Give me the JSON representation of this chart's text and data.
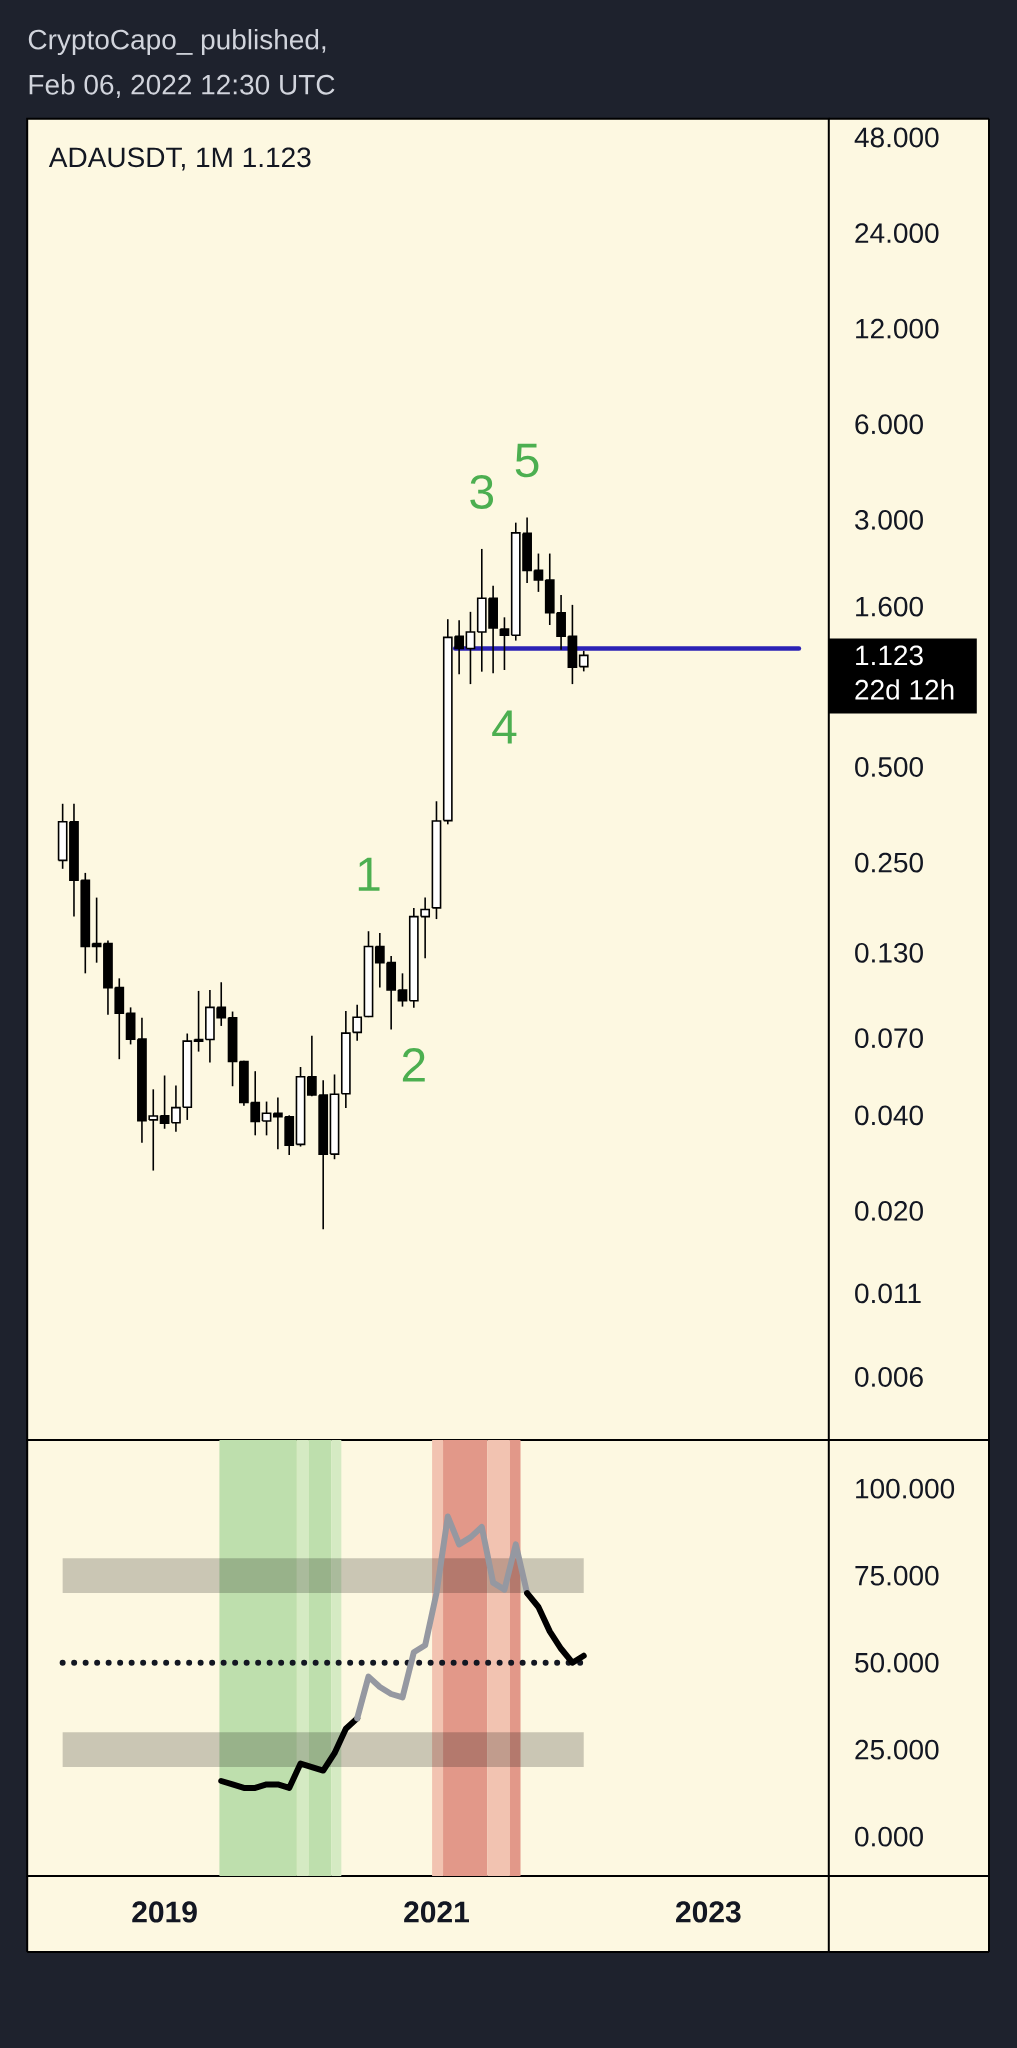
{
  "chart_data": [
    {
      "type": "candlestick",
      "title": "ADAUSDT, 1M 1.123",
      "x": [
        "2018-04",
        "2018-05",
        "2018-06",
        "2018-07",
        "2018-08",
        "2018-09",
        "2018-10",
        "2018-11",
        "2018-12",
        "2019-01",
        "2019-02",
        "2019-03",
        "2019-04",
        "2019-05",
        "2019-06",
        "2019-07",
        "2019-08",
        "2019-09",
        "2019-10",
        "2019-11",
        "2019-12",
        "2020-01",
        "2020-02",
        "2020-03",
        "2020-04",
        "2020-05",
        "2020-06",
        "2020-07",
        "2020-08",
        "2020-09",
        "2020-10",
        "2020-11",
        "2020-12",
        "2021-01",
        "2021-02",
        "2021-03",
        "2021-04",
        "2021-05",
        "2021-06",
        "2021-07",
        "2021-08",
        "2021-09",
        "2021-10",
        "2021-11",
        "2021-12",
        "2022-01",
        "2022-02"
      ],
      "ohlc": [
        [
          0.254,
          0.383,
          0.239,
          0.336
        ],
        [
          0.336,
          0.383,
          0.169,
          0.22
        ],
        [
          0.22,
          0.232,
          0.112,
          0.136
        ],
        [
          0.139,
          0.194,
          0.121,
          0.136
        ],
        [
          0.139,
          0.142,
          0.0829,
          0.101
        ],
        [
          0.101,
          0.108,
          0.0601,
          0.0839
        ],
        [
          0.0839,
          0.0875,
          0.0669,
          0.0695
        ],
        [
          0.0695,
          0.0812,
          0.0328,
          0.0385
        ],
        [
          0.0387,
          0.0483,
          0.0268,
          0.0398
        ],
        [
          0.0399,
          0.0534,
          0.0363,
          0.0378
        ],
        [
          0.0379,
          0.0497,
          0.0355,
          0.0423
        ],
        [
          0.0424,
          0.0724,
          0.0387,
          0.0685
        ],
        [
          0.0693,
          0.0986,
          0.0635,
          0.0685
        ],
        [
          0.0693,
          0.0993,
          0.0587,
          0.0875
        ],
        [
          0.0875,
          0.105,
          0.0765,
          0.0812
        ],
        [
          0.0812,
          0.0849,
          0.0494,
          0.0591
        ],
        [
          0.0591,
          0.0594,
          0.0429,
          0.0439
        ],
        [
          0.0439,
          0.0551,
          0.0346,
          0.0383
        ],
        [
          0.0384,
          0.0442,
          0.0346,
          0.0406
        ],
        [
          0.0406,
          0.0455,
          0.0313,
          0.0396
        ],
        [
          0.0396,
          0.04,
          0.03,
          0.0322
        ],
        [
          0.0324,
          0.0568,
          0.0319,
          0.0529
        ],
        [
          0.0529,
          0.0712,
          0.0459,
          0.0464
        ],
        [
          0.0463,
          0.0516,
          0.0175,
          0.0302
        ],
        [
          0.0302,
          0.0538,
          0.0291,
          0.0466
        ],
        [
          0.0468,
          0.0853,
          0.0422,
          0.0726
        ],
        [
          0.073,
          0.0892,
          0.0687,
          0.0815
        ],
        [
          0.0819,
          0.152,
          0.0815,
          0.136
        ],
        [
          0.136,
          0.15,
          0.101,
          0.121
        ],
        [
          0.121,
          0.127,
          0.0745,
          0.0993
        ],
        [
          0.0993,
          0.112,
          0.088,
          0.0918
        ],
        [
          0.0918,
          0.18,
          0.0872,
          0.169
        ],
        [
          0.169,
          0.194,
          0.125,
          0.178
        ],
        [
          0.18,
          0.39,
          0.166,
          0.338
        ],
        [
          0.339,
          1.46,
          0.33,
          1.28
        ],
        [
          1.29,
          1.45,
          0.98,
          1.18
        ],
        [
          1.18,
          1.54,
          0.912,
          1.33
        ],
        [
          1.33,
          2.43,
          0.998,
          1.7
        ],
        [
          1.7,
          1.86,
          0.987,
          1.37
        ],
        [
          1.36,
          1.48,
          1.01,
          1.3
        ],
        [
          1.3,
          2.94,
          1.25,
          2.73
        ],
        [
          2.72,
          3.05,
          1.9,
          2.08
        ],
        [
          2.08,
          2.35,
          1.78,
          1.94
        ],
        [
          1.94,
          2.35,
          1.4,
          1.53
        ],
        [
          1.53,
          1.74,
          1.17,
          1.29
        ],
        [
          1.29,
          1.62,
          0.912,
          1.03
        ],
        [
          1.035,
          1.16,
          1.0,
          1.123
        ]
      ],
      "colors": [
        "#ffffff",
        "#000000",
        "#000000",
        "#000000",
        "#000000",
        "#000000",
        "#000000",
        "#000000",
        "#ffffff",
        "#000000",
        "#ffffff",
        "#ffffff",
        "#000000",
        "#ffffff",
        "#000000",
        "#000000",
        "#000000",
        "#000000",
        "#ffffff",
        "#000000",
        "#000000",
        "#ffffff",
        "#000000",
        "#000000",
        "#ffffff",
        "#ffffff",
        "#ffffff",
        "#ffffff",
        "#000000",
        "#000000",
        "#000000",
        "#ffffff",
        "#ffffff",
        "#ffffff",
        "#ffffff",
        "#000000",
        "#ffffff",
        "#ffffff",
        "#000000",
        "#000000",
        "#ffffff",
        "#000000",
        "#000000",
        "#000000",
        "#000000",
        "#000000",
        "#ffffff"
      ],
      "series": [
        {
          "type": "line",
          "color": "#2b22b5",
          "x": [
            "2021-02-19",
            "2023-09-01"
          ],
          "values": [
            1.18,
            1.18
          ]
        }
      ],
      "annotations": [
        "CryptoCapo_ published,",
        "Feb 06, 2022 12:30 UTC",
        "1.123",
        "22d 12h",
        {
          "text": "1",
          "x": "2020-07",
          "y": 0.152
        },
        {
          "text": "2",
          "x": "2020-11",
          "y": 0.0872
        },
        {
          "text": "3",
          "x": "2021-05",
          "y": 2.43
        },
        {
          "text": "4",
          "x": "2021-07",
          "y": 1.01
        },
        {
          "text": "5",
          "x": "2021-09",
          "y": 3.05
        }
      ],
      "xlim": [
        "2017-12-28",
        "2023-11-20"
      ],
      "xticks": [
        "2019",
        "2021",
        "2023"
      ],
      "ylim": [
        0.0038,
        55
      ],
      "yticks": [
        {
          "value": 0.006,
          "label": "0.006"
        },
        {
          "value": 0.011,
          "label": "0.011"
        },
        {
          "value": 0.02,
          "label": "0.020"
        },
        {
          "value": 0.04,
          "label": "0.040"
        },
        {
          "value": 0.07,
          "label": "0.070"
        },
        {
          "value": 0.13,
          "label": "0.130"
        },
        {
          "value": 0.25,
          "label": "0.250"
        },
        {
          "value": 0.5,
          "label": "0.500"
        },
        {
          "value": 1.6,
          "label": "1.600"
        },
        {
          "value": 3,
          "label": "3.000"
        },
        {
          "value": 6,
          "label": "6.000"
        },
        {
          "value": 12,
          "label": "12.000"
        },
        {
          "value": 24,
          "label": "24.000"
        },
        {
          "value": 48,
          "label": "48.000"
        }
      ],
      "log": true,
      "tick_labels": "y"
    },
    {
      "type": "line",
      "series": [
        {
          "color": "#000000",
          "x": [
            "2019-06",
            "2019-07",
            "2019-08",
            "2019-09",
            "2019-10",
            "2019-11",
            "2019-12",
            "2020-01",
            "2020-02",
            "2020-03",
            "2020-04",
            "2020-05",
            "2020-06"
          ],
          "values": [
            16,
            15,
            14,
            14,
            15,
            15,
            14,
            21,
            20,
            19,
            24,
            31,
            34
          ]
        },
        {
          "color": "#9598a1",
          "x": [
            "2020-06",
            "2020-07",
            "2020-08",
            "2020-09",
            "2020-10",
            "2020-11",
            "2020-12",
            "2021-01",
            "2021-02",
            "2021-03",
            "2021-04",
            "2021-05",
            "2021-06",
            "2021-07",
            "2021-08",
            "2021-09"
          ],
          "values": [
            34,
            46,
            43,
            41,
            40,
            53,
            55,
            70,
            92,
            84,
            86,
            89,
            73,
            71,
            84,
            70
          ]
        },
        {
          "color": "#000000",
          "x": [
            "2021-09",
            "2021-10",
            "2021-11",
            "2021-12",
            "2022-01",
            "2022-02"
          ],
          "values": [
            70,
            66,
            59,
            54,
            50,
            52
          ]
        }
      ],
      "bands": [
        {
          "axis": "x",
          "from": "2019-05-27",
          "to": "2019-12-22",
          "color": "#bedfad"
        },
        {
          "axis": "x",
          "from": "2019-12-22",
          "to": "2020-01-24",
          "color": "#d5eac3"
        },
        {
          "axis": "x",
          "from": "2020-01-24",
          "to": "2020-03-23",
          "color": "#bedfad"
        },
        {
          "axis": "x",
          "from": "2020-03-23",
          "to": "2020-04-19",
          "color": "#d5eac3"
        },
        {
          "axis": "x",
          "from": "2020-12-20",
          "to": "2021-01-19",
          "color": "#f2c3b1"
        },
        {
          "axis": "x",
          "from": "2021-01-19",
          "to": "2021-05-16",
          "color": "#e29889"
        },
        {
          "axis": "x",
          "from": "2021-05-16",
          "to": "2021-07-16",
          "color": "#f2c3b1"
        },
        {
          "axis": "x",
          "from": "2021-07-16",
          "to": "2021-08-14",
          "color": "#e29889"
        },
        {
          "axis": "y",
          "from": 20,
          "to": 30,
          "color": "#cbc6b4"
        },
        {
          "axis": "y",
          "from": 70,
          "to": 80,
          "color": "#cbc6b4"
        }
      ],
      "ref_lines": [
        {
          "axis": "y",
          "value": 50,
          "color": "#131722",
          "line_style": "dotted"
        }
      ],
      "xlim": [
        "2017-12-28",
        "2023-11-20"
      ],
      "xticks": [
        "2019",
        "2021",
        "2023"
      ],
      "ylim": [
        -11.3,
        114
      ],
      "yticks": [
        {
          "value": 0,
          "label": "0.000"
        },
        {
          "value": 25,
          "label": "25.000"
        },
        {
          "value": 50,
          "label": "50.000"
        },
        {
          "value": 75,
          "label": "75.000"
        },
        {
          "value": 100,
          "label": "100.000"
        }
      ]
    }
  ]
}
